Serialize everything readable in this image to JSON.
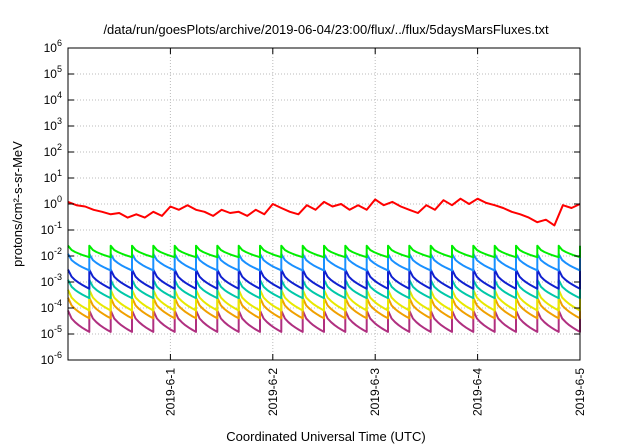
{
  "chart_data": {
    "type": "line",
    "title": "/data/run/goesPlots/archive/2019-06-04/23:00/flux/../flux/5daysMarsFluxes.txt",
    "xlabel": "Coordinated Universal Time (UTC)",
    "ylabel": "protons/cm²-s-sr-MeV",
    "yscale": "log",
    "ylim": [
      1e-06,
      1000000.0
    ],
    "xlim": [
      "2019-05-31 00:00",
      "2019-06-05 00:00"
    ],
    "grid": true,
    "legend": "none",
    "y_ticks": [
      {
        "base": "10",
        "exp": "-6"
      },
      {
        "base": "10",
        "exp": "-5"
      },
      {
        "base": "10",
        "exp": "-4"
      },
      {
        "base": "10",
        "exp": "-3"
      },
      {
        "base": "10",
        "exp": "-2"
      },
      {
        "base": "10",
        "exp": "-1"
      },
      {
        "base": "10",
        "exp": "0"
      },
      {
        "base": "10",
        "exp": "1"
      },
      {
        "base": "10",
        "exp": "2"
      },
      {
        "base": "10",
        "exp": "3"
      },
      {
        "base": "10",
        "exp": "4"
      },
      {
        "base": "10",
        "exp": "5"
      },
      {
        "base": "10",
        "exp": "6"
      }
    ],
    "x_ticks": [
      "2019-6-1",
      "2019-6-2",
      "2019-6-3",
      "2019-6-4",
      "2019-6-5"
    ],
    "red_series": {
      "color": "#ff0000",
      "x": [
        "2019-05-31 00:00",
        "2019-05-31 02:00",
        "2019-05-31 04:00",
        "2019-05-31 06:00",
        "2019-05-31 08:00",
        "2019-05-31 10:00",
        "2019-05-31 12:00",
        "2019-05-31 14:00",
        "2019-05-31 16:00",
        "2019-05-31 18:00",
        "2019-05-31 20:00",
        "2019-05-31 22:00",
        "2019-06-01 00:00",
        "2019-06-01 02:00",
        "2019-06-01 04:00",
        "2019-06-01 06:00",
        "2019-06-01 08:00",
        "2019-06-01 10:00",
        "2019-06-01 12:00",
        "2019-06-01 14:00",
        "2019-06-01 16:00",
        "2019-06-01 18:00",
        "2019-06-01 20:00",
        "2019-06-01 22:00",
        "2019-06-02 00:00",
        "2019-06-02 02:00",
        "2019-06-02 04:00",
        "2019-06-02 06:00",
        "2019-06-02 08:00",
        "2019-06-02 10:00",
        "2019-06-02 12:00",
        "2019-06-02 14:00",
        "2019-06-02 16:00",
        "2019-06-02 18:00",
        "2019-06-02 20:00",
        "2019-06-02 22:00",
        "2019-06-03 00:00",
        "2019-06-03 02:00",
        "2019-06-03 04:00",
        "2019-06-03 06:00",
        "2019-06-03 08:00",
        "2019-06-03 10:00",
        "2019-06-03 12:00",
        "2019-06-03 14:00",
        "2019-06-03 16:00",
        "2019-06-03 18:00",
        "2019-06-03 20:00",
        "2019-06-03 22:00",
        "2019-06-04 00:00",
        "2019-06-04 02:00",
        "2019-06-04 04:00",
        "2019-06-04 06:00",
        "2019-06-04 08:00",
        "2019-06-04 10:00",
        "2019-06-04 12:00",
        "2019-06-04 14:00",
        "2019-06-04 16:00",
        "2019-06-04 18:00",
        "2019-06-04 20:00",
        "2019-06-04 22:00",
        "2019-06-05 00:00"
      ],
      "y": [
        1.2,
        0.9,
        0.8,
        0.6,
        0.5,
        0.4,
        0.45,
        0.3,
        0.4,
        0.3,
        0.5,
        0.35,
        0.8,
        0.6,
        0.9,
        0.6,
        0.5,
        0.35,
        0.6,
        0.45,
        0.5,
        0.35,
        0.6,
        0.4,
        1.0,
        0.7,
        0.5,
        0.4,
        0.9,
        0.6,
        1.2,
        0.8,
        1.0,
        0.6,
        0.9,
        0.6,
        1.5,
        0.9,
        1.2,
        0.8,
        0.6,
        0.45,
        0.9,
        0.6,
        1.4,
        0.9,
        1.6,
        1.0,
        1.6,
        1.1,
        0.9,
        0.7,
        0.5,
        0.4,
        0.3,
        0.2,
        0.25,
        0.15,
        0.9,
        0.7,
        1.0
      ]
    },
    "sawtooth_series": [
      {
        "color": "#00ee00",
        "peak": 0.025,
        "low": 0.009,
        "cycles": 24
      },
      {
        "color": "#1a90ff",
        "peak": 0.012,
        "low": 0.0028,
        "cycles": 24
      },
      {
        "color": "#1020d0",
        "peak": 0.003,
        "low": 0.00055,
        "cycles": 24
      },
      {
        "color": "#00c8a8",
        "peak": 0.0012,
        "low": 0.00024,
        "cycles": 24
      },
      {
        "color": "#e8e800",
        "peak": 0.0005,
        "low": 8e-05,
        "cycles": 24
      },
      {
        "color": "#f0a000",
        "peak": 0.00025,
        "low": 4e-05,
        "cycles": 24
      },
      {
        "color": "#b03080",
        "peak": 8e-05,
        "low": 1.2e-05,
        "cycles": 24
      }
    ]
  }
}
